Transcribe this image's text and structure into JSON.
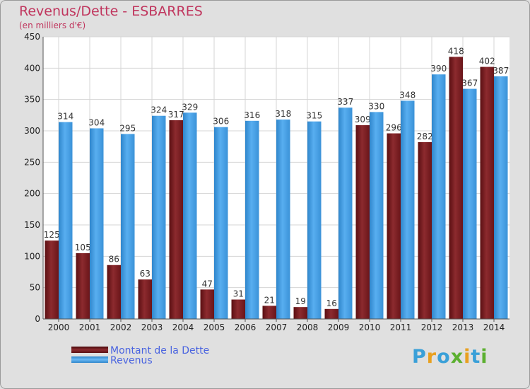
{
  "header": {
    "title": "Revenus/Dette - ESBARRES",
    "subtitle": "(en milliers d'€)"
  },
  "logo": {
    "text": "Proxiti",
    "colors": [
      "#3aa0d8",
      "#e8a020",
      "#3aa0d8",
      "#5cb030",
      "#e8a020",
      "#3aa0d8",
      "#5cb030"
    ]
  },
  "chart_data": {
    "type": "bar",
    "categories": [
      "2000",
      "2001",
      "2002",
      "2003",
      "2004",
      "2005",
      "2006",
      "2007",
      "2008",
      "2009",
      "2010",
      "2011",
      "2012",
      "2013",
      "2014"
    ],
    "series": [
      {
        "name": "Montant de la Dette",
        "color": "#7a1e22",
        "values": [
          125,
          105,
          86,
          63,
          317,
          47,
          31,
          21,
          19,
          16,
          309,
          296,
          282,
          418,
          402
        ]
      },
      {
        "name": "Revenus",
        "color": "#3d97dc",
        "values": [
          314,
          304,
          295,
          324,
          329,
          306,
          316,
          318,
          315,
          337,
          330,
          348,
          390,
          367,
          387
        ]
      }
    ],
    "ylim": [
      0,
      450
    ],
    "yticks": [
      "0",
      "50",
      "100",
      "150",
      "200",
      "250",
      "300",
      "350",
      "400",
      "450"
    ],
    "grid": true,
    "legend_position": "bottom-left"
  }
}
